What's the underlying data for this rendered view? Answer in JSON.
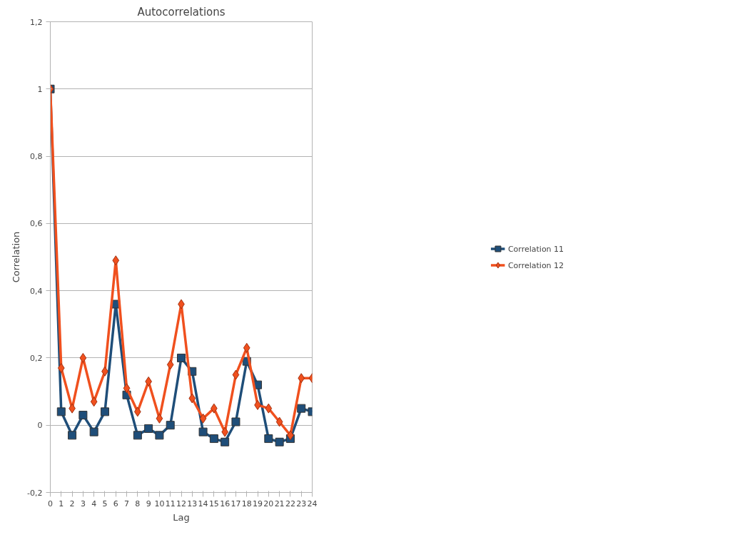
{
  "chart_data": {
    "type": "line",
    "title": "Autocorrelations",
    "xlabel": "Lag",
    "ylabel": "Correlation",
    "x": [
      0,
      1,
      2,
      3,
      4,
      5,
      6,
      7,
      8,
      9,
      10,
      11,
      12,
      13,
      14,
      15,
      16,
      17,
      18,
      19,
      20,
      21,
      22,
      23,
      24
    ],
    "series": [
      {
        "name": "Correlation 11",
        "color": "#1f4e79",
        "marker": "square",
        "values": [
          1,
          0.04,
          -0.03,
          0.03,
          -0.02,
          0.04,
          0.36,
          0.09,
          -0.03,
          -0.01,
          -0.03,
          0,
          0.2,
          0.16,
          -0.02,
          -0.04,
          -0.05,
          0.01,
          0.19,
          0.12,
          -0.04,
          -0.05,
          -0.04,
          0.05,
          0.04
        ]
      },
      {
        "name": "Correlation 12",
        "color": "#f0501e",
        "marker": "diamond",
        "values": [
          1,
          0.17,
          0.05,
          0.2,
          0.07,
          0.16,
          0.49,
          0.11,
          0.04,
          0.13,
          0.02,
          0.18,
          0.36,
          0.08,
          0.02,
          0.05,
          -0.02,
          0.15,
          0.23,
          0.06,
          0.05,
          0.01,
          -0.03,
          0.14,
          0.14
        ]
      }
    ],
    "xlim": [
      0,
      24
    ],
    "xticks": [
      0,
      1,
      2,
      3,
      4,
      5,
      6,
      7,
      8,
      9,
      10,
      11,
      12,
      13,
      14,
      15,
      16,
      17,
      18,
      19,
      20,
      21,
      22,
      23,
      24
    ],
    "ylim": [
      -0.2,
      1.2
    ],
    "yticks": [
      {
        "value": -0.2,
        "label": "-0,2"
      },
      0,
      {
        "value": 0.2,
        "label": "0,2"
      },
      {
        "value": 0.4,
        "label": "0,4"
      },
      {
        "value": 0.6,
        "label": "0,6"
      },
      {
        "value": 0.8,
        "label": "0,8"
      },
      1,
      {
        "value": 1.2,
        "label": "1,2"
      }
    ],
    "grid": "y",
    "legend": "right",
    "line_style": "solid"
  }
}
